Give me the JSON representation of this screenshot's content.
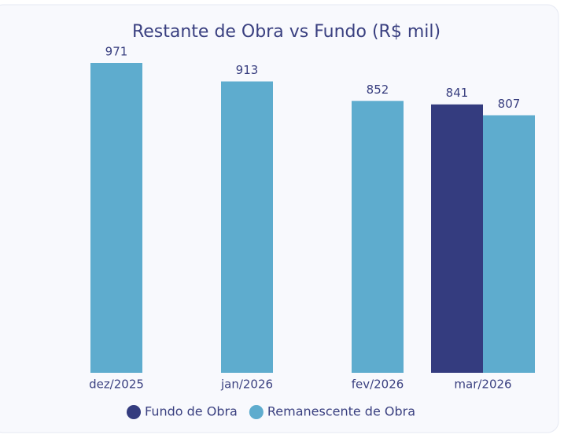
{
  "chart_data": {
    "type": "bar",
    "title": "Restante de Obra vs Fundo (R$ mil)",
    "categories": [
      "dez/2025",
      "jan/2026",
      "fev/2026",
      "mar/2026"
    ],
    "series": [
      {
        "name": "Fundo de Obra",
        "color": "#343c7f",
        "values": [
          null,
          null,
          null,
          841
        ]
      },
      {
        "name": "Remanescente de Obra",
        "color": "#5eacce",
        "values": [
          971,
          913,
          852,
          807
        ]
      }
    ]
  }
}
